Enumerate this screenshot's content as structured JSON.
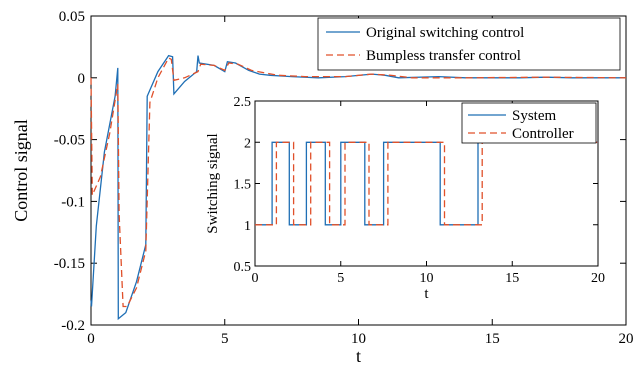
{
  "colors": {
    "original": "#1f6fb5",
    "bumpless": "#e0502a",
    "system": "#1f6fb5",
    "controller": "#e0502a"
  },
  "chart_data": [
    {
      "type": "line",
      "xlabel": "t",
      "ylabel": "Control signal",
      "xlim": [
        0,
        20
      ],
      "ylim": [
        -0.2,
        0.05
      ],
      "xticks": [
        "0",
        "5",
        "10",
        "15",
        "20"
      ],
      "yticks": [
        "0.05",
        "0",
        "-0.05",
        "-0.1",
        "-0.15",
        "-0.2"
      ],
      "legend_position": "top-right",
      "grid": false,
      "series": [
        {
          "name": "Original switching control",
          "style": "solid",
          "points": [
            [
              0,
              -0.18
            ],
            [
              0.02,
              -0.185
            ],
            [
              0.2,
              -0.12
            ],
            [
              0.5,
              -0.06
            ],
            [
              0.9,
              -0.015
            ],
            [
              1.0,
              0.008
            ],
            [
              1.02,
              -0.195
            ],
            [
              1.3,
              -0.19
            ],
            [
              1.7,
              -0.165
            ],
            [
              2.05,
              -0.135
            ],
            [
              2.1,
              -0.015
            ],
            [
              2.5,
              0.005
            ],
            [
              2.9,
              0.018
            ],
            [
              3.05,
              0.017
            ],
            [
              3.1,
              -0.013
            ],
            [
              3.5,
              -0.003
            ],
            [
              3.95,
              0.005
            ],
            [
              4.0,
              0.018
            ],
            [
              4.05,
              0.012
            ],
            [
              4.6,
              0.01
            ],
            [
              5.0,
              0.005
            ],
            [
              5.1,
              0.013
            ],
            [
              5.4,
              0.012
            ],
            [
              5.9,
              0.006
            ],
            [
              6.3,
              0.003
            ],
            [
              6.7,
              0.002
            ],
            [
              7.5,
              0.001
            ],
            [
              8.5,
              0.0
            ],
            [
              9.5,
              0.001
            ],
            [
              10.5,
              0.003
            ],
            [
              11.0,
              0.002
            ],
            [
              11.5,
              0.0
            ],
            [
              13,
              0.001
            ],
            [
              14,
              0.0
            ],
            [
              16,
              0.0
            ],
            [
              17,
              0.0005
            ],
            [
              18,
              0.0
            ],
            [
              20,
              0.0
            ]
          ]
        },
        {
          "name": "Bumpless transfer control",
          "style": "dashed",
          "points": [
            [
              0,
              0.0
            ],
            [
              0.05,
              -0.095
            ],
            [
              0.35,
              -0.08
            ],
            [
              0.7,
              -0.045
            ],
            [
              1.0,
              -0.005
            ],
            [
              1.05,
              -0.11
            ],
            [
              1.2,
              -0.185
            ],
            [
              1.35,
              -0.185
            ],
            [
              1.7,
              -0.17
            ],
            [
              2.05,
              -0.14
            ],
            [
              2.2,
              -0.02
            ],
            [
              2.5,
              0.0
            ],
            [
              2.9,
              0.016
            ],
            [
              3.0,
              0.015
            ],
            [
              3.1,
              -0.002
            ],
            [
              3.5,
              0.0
            ],
            [
              4.0,
              0.005
            ],
            [
              4.1,
              0.011
            ],
            [
              4.6,
              0.01
            ],
            [
              5.0,
              0.006
            ],
            [
              5.15,
              0.012
            ],
            [
              5.5,
              0.011
            ],
            [
              6.0,
              0.006
            ],
            [
              6.5,
              0.004
            ],
            [
              7.0,
              0.002
            ],
            [
              8.0,
              0.001
            ],
            [
              9.5,
              0.001
            ],
            [
              10.5,
              0.003
            ],
            [
              11.2,
              0.002
            ],
            [
              12,
              0.0
            ],
            [
              14,
              0.0
            ],
            [
              17,
              0.0005
            ],
            [
              20,
              0.0
            ]
          ]
        }
      ]
    },
    {
      "type": "line",
      "xlabel": "t",
      "ylabel": "Switching signal",
      "xlim": [
        0,
        20
      ],
      "ylim": [
        0.5,
        2.5
      ],
      "xticks": [
        "0",
        "5",
        "10",
        "15",
        "20"
      ],
      "yticks": [
        "2.5",
        "2",
        "1.5",
        "1",
        "0.5"
      ],
      "legend_position": "top-right",
      "grid": false,
      "switch_times": [
        1.0,
        2.0,
        3.0,
        4.1,
        5.0,
        6.4,
        7.5,
        10.8,
        13.0,
        20.0
      ],
      "series": [
        {
          "name": "System",
          "style": "solid",
          "start_value": 1,
          "delay": 0.0
        },
        {
          "name": "Controller",
          "style": "dashed",
          "start_value": 1,
          "delay": 0.25
        }
      ]
    }
  ]
}
